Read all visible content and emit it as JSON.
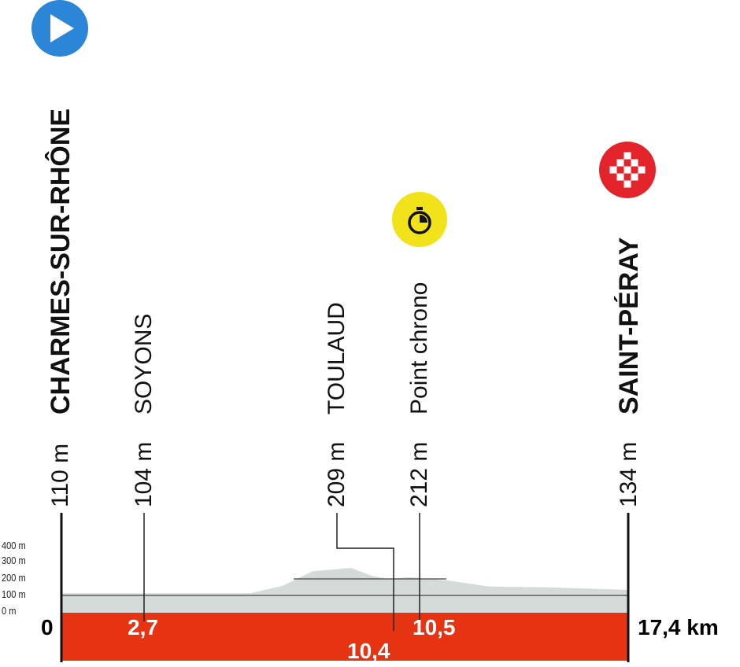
{
  "chart_data": {
    "type": "area",
    "xlabel": "",
    "ylabel": "",
    "x_unit": "km",
    "xlim": [
      0,
      17.4
    ],
    "y_ticks": [
      "400 m",
      "300 m",
      "200 m",
      "100 m",
      "0 m"
    ],
    "ylim": [
      0,
      400
    ],
    "profile": [
      {
        "km": 0,
        "elev": 115
      },
      {
        "km": 5.8,
        "elev": 115
      },
      {
        "km": 6.8,
        "elev": 160
      },
      {
        "km": 7.7,
        "elev": 245
      },
      {
        "km": 8.9,
        "elev": 265
      },
      {
        "km": 9.5,
        "elev": 220
      },
      {
        "km": 10.0,
        "elev": 200
      },
      {
        "km": 10.7,
        "elev": 210
      },
      {
        "km": 11.9,
        "elev": 190
      },
      {
        "km": 13.1,
        "elev": 155
      },
      {
        "km": 15.0,
        "elev": 150
      },
      {
        "km": 17.4,
        "elev": 135
      }
    ],
    "colors": {
      "profile": "#d5dbd8",
      "band": "#e63312",
      "start": "#2b86d8",
      "chrono": "#f2e21a",
      "finish": "#e3242b"
    }
  },
  "waypoints": {
    "start": {
      "name": "CHARMES-SUR-RHÔNE",
      "altitude": "110 m",
      "km_label": "0",
      "icon": "play-icon"
    },
    "soyons": {
      "name": "SOYONS",
      "altitude": "104 m",
      "km_label": "2,7"
    },
    "toulaud": {
      "name": "TOULAUD",
      "altitude": "209 m",
      "km_label": "10,4"
    },
    "chrono": {
      "name": "Point chrono",
      "altitude": "212 m",
      "km_label": "10,5",
      "icon": "stopwatch-icon"
    },
    "finish": {
      "name": "SAINT-PÉRAY",
      "altitude": "134 m",
      "km_label": "17,4 km",
      "icon": "checkered-flag-icon"
    }
  }
}
